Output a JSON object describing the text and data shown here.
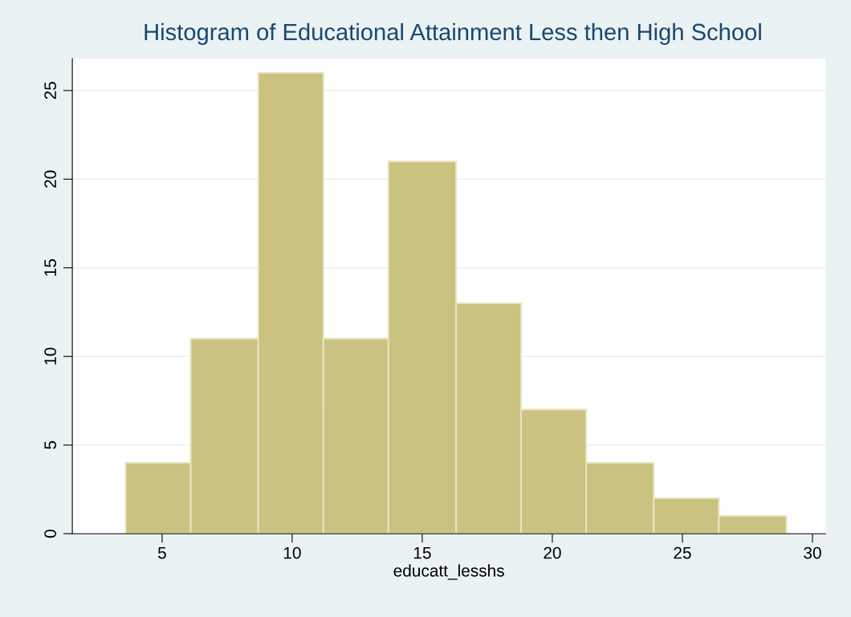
{
  "chart_data": {
    "type": "histogram",
    "title": "Histogram of Educational Attainment Less then High School",
    "xlabel": "educatt_lesshs",
    "bins": [
      3.6,
      6.1,
      8.7,
      11.2,
      13.7,
      16.3,
      18.8,
      21.3,
      23.9,
      26.4,
      29.0
    ],
    "values": [
      4,
      11,
      26,
      11,
      21,
      13,
      7,
      4,
      2,
      1
    ],
    "color": "#c9c280",
    "xlim": [
      1.55,
      30.5
    ],
    "xticks": [
      5,
      10,
      15,
      20,
      25,
      30
    ],
    "ylim": [
      0,
      26.8
    ],
    "yticks": [
      0,
      5,
      10,
      15,
      20,
      25
    ],
    "grid": "y"
  }
}
